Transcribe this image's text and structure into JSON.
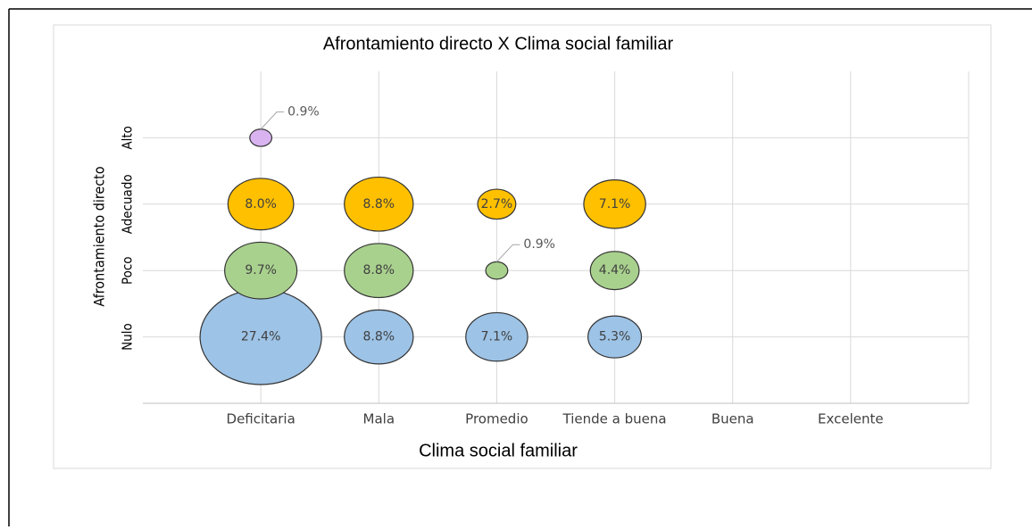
{
  "chart_data": {
    "type": "bubble",
    "title": "Afrontamiento directo X Clima social familiar",
    "x_label": "Clima social familiar",
    "y_label": "Afrontamiento directo",
    "categories": [
      "Deficitaria",
      "Mala",
      "Promedio",
      "Tiende a buena",
      "Buena",
      "Excelente"
    ],
    "y_categories": [
      "Nulo",
      "Poco",
      "Adecuado",
      "Alto"
    ],
    "grid": true,
    "series": [
      {
        "color": "#9dc3e6",
        "values": [
          27.4,
          8.8,
          7.1,
          5.3,
          null,
          null
        ],
        "value_labels": [
          "27.4%",
          "8.8%",
          "7.1%",
          "5.3%",
          null,
          null
        ]
      },
      {
        "color": "#a9d18e",
        "values": [
          9.7,
          8.8,
          0.9,
          4.4,
          null,
          null
        ],
        "value_labels": [
          "9.7%",
          "8.8%",
          "0.9%",
          "4.4%",
          null,
          null
        ]
      },
      {
        "color": "#ffc000",
        "values": [
          8.0,
          8.8,
          2.7,
          7.1,
          null,
          null
        ],
        "value_labels": [
          "8.0%",
          "8.8%",
          "2.7%",
          "7.1%",
          null,
          null
        ]
      },
      {
        "color": "#d9b3f0",
        "values": [
          0.9,
          null,
          null,
          null,
          null,
          null
        ],
        "value_labels": [
          "0.9%",
          null,
          null,
          null,
          null,
          null
        ]
      }
    ]
  }
}
